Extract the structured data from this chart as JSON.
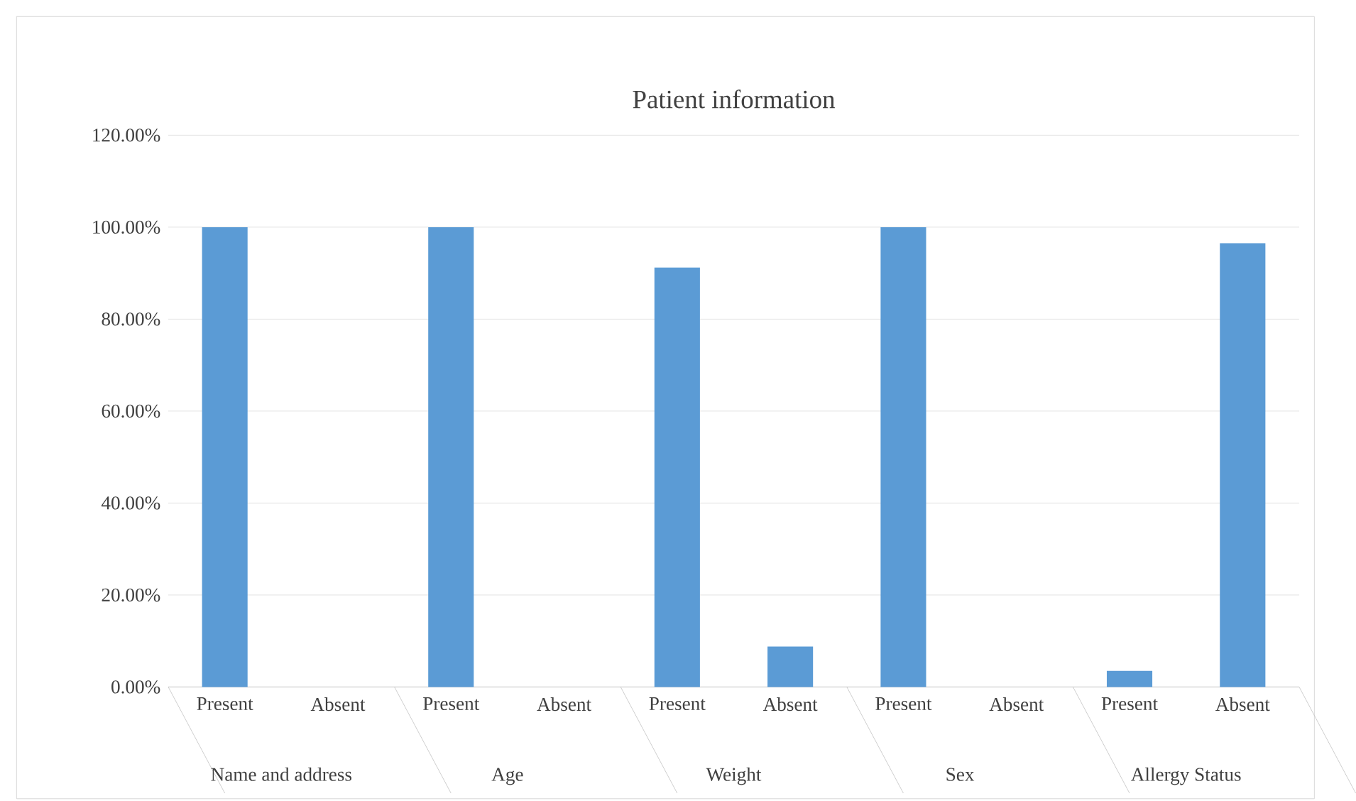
{
  "chart_data": {
    "type": "bar",
    "title": "Patient information",
    "categories": [
      "Present",
      "Absent",
      "Present",
      "Absent",
      "Present",
      "Absent",
      "Present",
      "Absent",
      "Present",
      "Absent"
    ],
    "values": [
      100,
      0,
      100,
      0,
      91.2,
      8.8,
      100,
      0,
      3.5,
      96.5
    ],
    "color": "#5b9bd5",
    "ylim": [
      0,
      120
    ],
    "yticks": [
      {
        "value": 0,
        "label": "0.00%"
      },
      {
        "value": 20,
        "label": "20.00%"
      },
      {
        "value": 40,
        "label": "40.00%"
      },
      {
        "value": 60,
        "label": "60.00%"
      },
      {
        "value": 80,
        "label": "80.00%"
      },
      {
        "value": 100,
        "label": "100.00%"
      },
      {
        "value": 120,
        "label": "120.00%"
      }
    ],
    "grid": "y",
    "annotations": [
      "Name and address",
      "Age",
      "Weight",
      "Sex",
      "Allergy Status"
    ]
  }
}
